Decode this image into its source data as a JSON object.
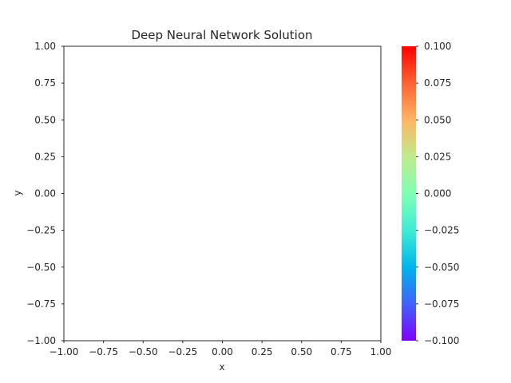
{
  "chart_data": {
    "type": "heatmap",
    "title": "Deep Neural Network Solution",
    "xlabel": "x",
    "ylabel": "y",
    "xlim": [
      -1.0,
      1.0
    ],
    "ylim": [
      -1.0,
      1.0
    ],
    "xticks": [
      "−1.00",
      "−0.75",
      "−0.50",
      "−0.25",
      "0.00",
      "0.25",
      "0.50",
      "0.75",
      "1.00"
    ],
    "xtick_values": [
      -1.0,
      -0.75,
      -0.5,
      -0.25,
      0.0,
      0.25,
      0.5,
      0.75,
      1.0
    ],
    "yticks": [
      "−1.00",
      "−0.75",
      "−0.50",
      "−0.25",
      "0.00",
      "0.25",
      "0.50",
      "0.75",
      "1.00"
    ],
    "ytick_values": [
      -1.0,
      -0.75,
      -0.5,
      -0.25,
      0.0,
      0.25,
      0.5,
      0.75,
      1.0
    ],
    "grid": false,
    "values": [],
    "colorbar": {
      "colormap": "rainbow",
      "range": [
        -0.1,
        0.1
      ],
      "ticks": [
        "−0.100",
        "−0.075",
        "−0.050",
        "−0.025",
        "0.000",
        "0.025",
        "0.050",
        "0.075",
        "0.100"
      ],
      "tick_values": [
        -0.1,
        -0.075,
        -0.05,
        -0.025,
        0.0,
        0.025,
        0.05,
        0.075,
        0.1
      ],
      "colors": [
        "#8000ff",
        "#4062fa",
        "#00b5eb",
        "#40ecd4",
        "#80ffb4",
        "#c0eb8d",
        "#ffb462",
        "#ff6232",
        "#ff0000"
      ]
    }
  }
}
